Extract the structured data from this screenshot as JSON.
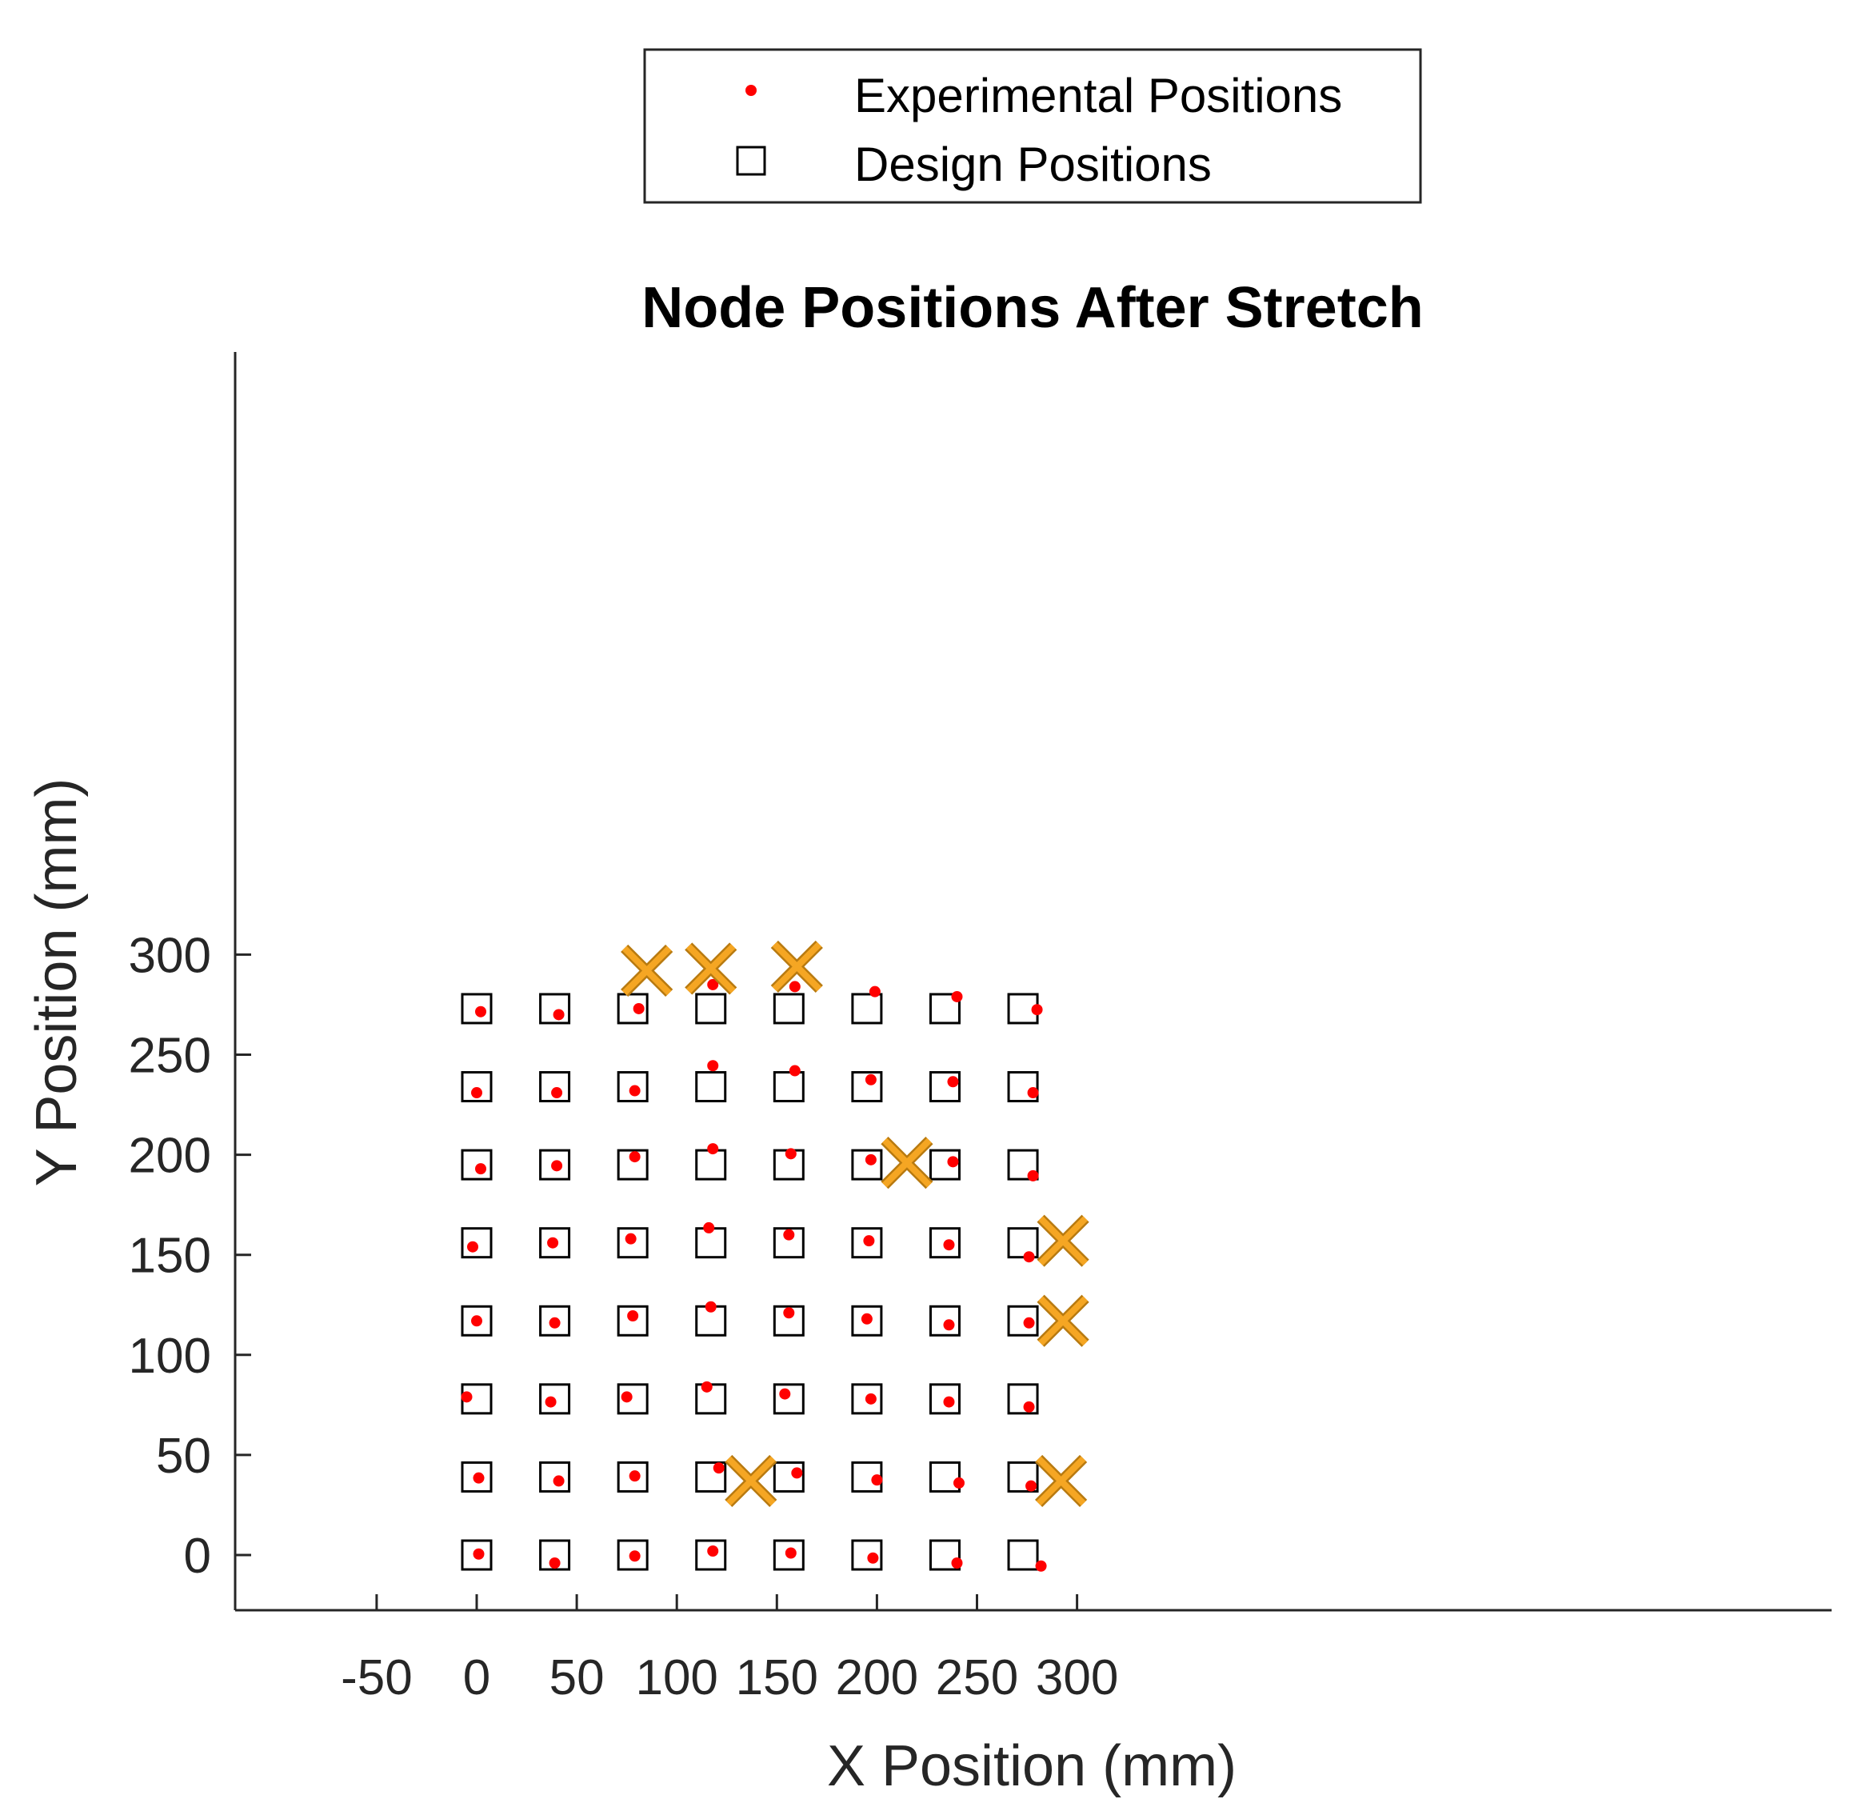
{
  "chart_data": {
    "type": "scatter",
    "title": "Node Positions After Stretch",
    "xlabel": "X Position (mm)",
    "ylabel": "Y Position (mm)",
    "xlim": [
      -60,
      338
    ],
    "ylim": [
      -15,
      300
    ],
    "xticks": [
      -50,
      0,
      50,
      100,
      150,
      200,
      250,
      300
    ],
    "yticks": [
      0,
      50,
      100,
      150,
      200,
      250,
      300
    ],
    "grid": false,
    "legend_position": "top-center",
    "colors": {
      "experimental": "#ff0000",
      "design": "#000000",
      "failed": "#f5a623",
      "axis": "#262626"
    },
    "series": [
      {
        "name": "Experimental Positions",
        "marker": "dot",
        "points": [
          [
            2,
            271.5
          ],
          [
            41,
            270
          ],
          [
            81,
            273
          ],
          [
            118,
            285
          ],
          [
            159,
            284
          ],
          [
            199,
            281.5
          ],
          [
            240,
            279
          ],
          [
            280,
            272.5
          ],
          [
            0,
            231
          ],
          [
            40,
            231
          ],
          [
            79,
            232
          ],
          [
            118,
            244.5
          ],
          [
            159,
            242
          ],
          [
            197,
            237.5
          ],
          [
            238,
            236.5
          ],
          [
            278,
            231
          ],
          [
            2,
            193
          ],
          [
            40,
            194.5
          ],
          [
            79,
            199
          ],
          [
            118,
            203
          ],
          [
            157,
            200.5
          ],
          [
            197,
            197.5
          ],
          [
            238,
            196.5
          ],
          [
            278,
            189.5
          ],
          [
            -2,
            154
          ],
          [
            38,
            156
          ],
          [
            77,
            158
          ],
          [
            116,
            163.5
          ],
          [
            156,
            160
          ],
          [
            196,
            157
          ],
          [
            236,
            155
          ],
          [
            276,
            149
          ],
          [
            0,
            117
          ],
          [
            39,
            116
          ],
          [
            78,
            119.5
          ],
          [
            117,
            124
          ],
          [
            156,
            121
          ],
          [
            195,
            118
          ],
          [
            236,
            115
          ],
          [
            276,
            116
          ],
          [
            -5,
            79
          ],
          [
            37,
            76.5
          ],
          [
            75,
            79
          ],
          [
            115,
            84
          ],
          [
            154,
            80.5
          ],
          [
            197,
            78
          ],
          [
            236,
            76.5
          ],
          [
            276,
            74
          ],
          [
            1,
            38.5
          ],
          [
            41,
            37
          ],
          [
            79,
            39.5
          ],
          [
            121,
            43.5
          ],
          [
            160,
            41
          ],
          [
            200,
            37.5
          ],
          [
            241,
            36
          ],
          [
            277,
            34.5
          ],
          [
            1,
            0.5
          ],
          [
            39,
            -4
          ],
          [
            79,
            -0.5
          ],
          [
            118,
            2
          ],
          [
            157,
            1
          ],
          [
            198,
            -1.5
          ],
          [
            240,
            -4
          ],
          [
            282,
            -5.5
          ]
        ]
      },
      {
        "name": "Design Positions",
        "marker": "square",
        "x": [
          0,
          39,
          78,
          117,
          156,
          195,
          234,
          273
        ],
        "y": [
          0,
          39,
          78,
          117,
          156,
          195,
          234,
          273
        ]
      },
      {
        "marker": "x",
        "points": [
          [
            85,
            292
          ],
          [
            117,
            293
          ],
          [
            160,
            294
          ],
          [
            215,
            196
          ],
          [
            293,
            157
          ],
          [
            293,
            117
          ],
          [
            137,
            37
          ],
          [
            292,
            37
          ]
        ]
      }
    ]
  }
}
